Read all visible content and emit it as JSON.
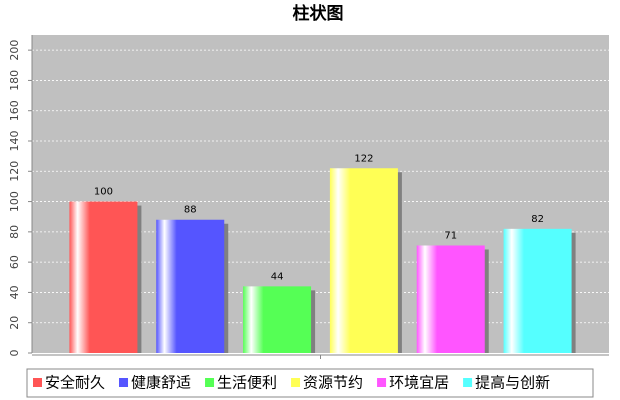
{
  "chart_data": {
    "type": "bar",
    "title": "柱状图",
    "categories": [
      "安全耐久",
      "健康舒适",
      "生活便利",
      "资源节约",
      "环境宜居",
      "提高与创新"
    ],
    "values": [
      100,
      88,
      44,
      122,
      71,
      82
    ],
    "colors": [
      "#ff5555",
      "#5555ff",
      "#55ff55",
      "#ffff55",
      "#ff55ff",
      "#55ffff"
    ],
    "ylim": [
      0,
      210
    ],
    "yticks": [
      0,
      20,
      40,
      60,
      80,
      100,
      120,
      140,
      160,
      180,
      200
    ],
    "grid": true,
    "legend": "bottom"
  }
}
